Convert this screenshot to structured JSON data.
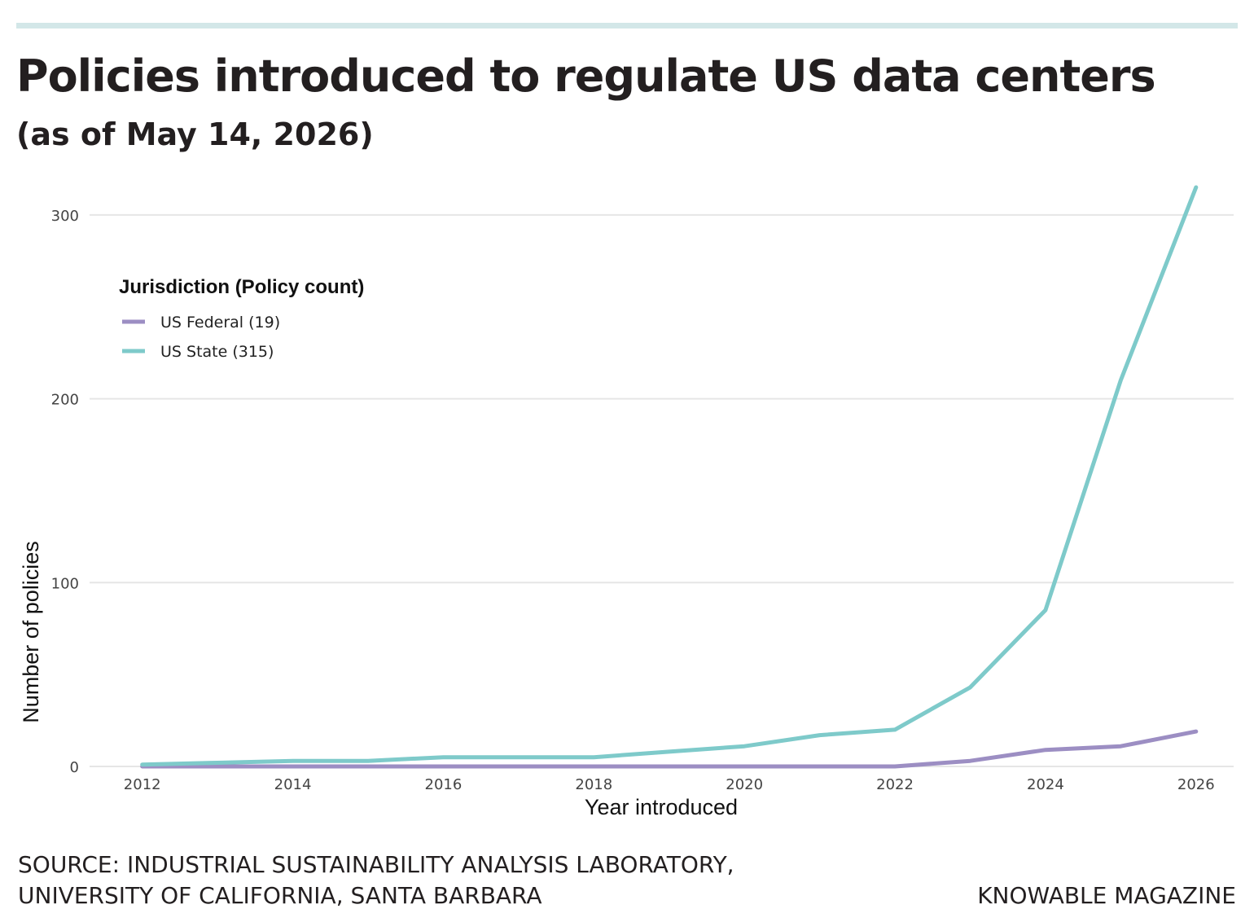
{
  "header": {
    "title": "Policies introduced to regulate US data centers",
    "subtitle": "(as of May 14, 2026)"
  },
  "footer": {
    "source_line1": "SOURCE: INDUSTRIAL SUSTAINABILITY ANALYSIS LABORATORY,",
    "source_line2": "UNIVERSITY OF CALIFORNIA, SANTA BARBARA",
    "credit": "KNOWABLE MAGAZINE"
  },
  "chart_data": {
    "type": "line",
    "xlabel": "Year introduced",
    "ylabel": "Number of policies",
    "xlim": [
      2011.3,
      2026.5
    ],
    "ylim": [
      0,
      315
    ],
    "x_ticks": [
      2012,
      2014,
      2016,
      2018,
      2020,
      2022,
      2024,
      2026
    ],
    "y_ticks": [
      0,
      100,
      200,
      300
    ],
    "grid": "horizontal",
    "legend": {
      "title": "Jurisdiction (Policy count)",
      "placement": "top-left"
    },
    "series": [
      {
        "name": "US Federal (19)",
        "color": "#9c8ec3",
        "x": [
          2012,
          2013,
          2014,
          2015,
          2016,
          2017,
          2018,
          2019,
          2020,
          2021,
          2022,
          2023,
          2024,
          2025,
          2026
        ],
        "values": [
          0,
          0,
          0,
          0,
          0,
          0,
          0,
          0,
          0,
          0,
          0,
          3,
          9,
          11,
          19
        ]
      },
      {
        "name": "US State (315)",
        "color": "#7ecaca",
        "x": [
          2012,
          2013,
          2014,
          2015,
          2016,
          2017,
          2018,
          2019,
          2020,
          2021,
          2022,
          2023,
          2024,
          2025,
          2026
        ],
        "values": [
          1,
          2,
          3,
          3,
          5,
          5,
          5,
          8,
          11,
          17,
          20,
          43,
          85,
          210,
          315
        ]
      }
    ]
  }
}
